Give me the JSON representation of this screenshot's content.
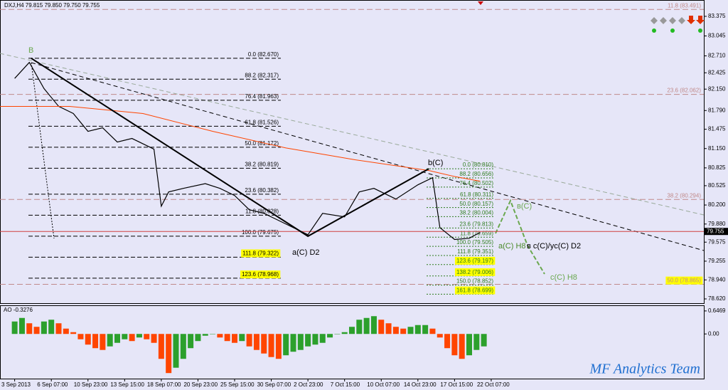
{
  "chart_data": {
    "type": "line",
    "title": "DXJ,H4  79.815 79.850 79.750 79.755",
    "last_price": 79.755,
    "xlim": [
      -4,
      188
    ],
    "xticks": [
      {
        "value": 0,
        "label": "3 Sep 2013"
      },
      {
        "value": 10,
        "label": "6 Sep 07:00"
      },
      {
        "value": 20,
        "label": "10 Sep 23:00"
      },
      {
        "value": 30,
        "label": "13 Sep 15:00"
      },
      {
        "value": 40,
        "label": "18 Sep 07:00"
      },
      {
        "value": 50,
        "label": "20 Sep 23:00"
      },
      {
        "value": 60,
        "label": "25 Sep 15:00"
      },
      {
        "value": 70,
        "label": "30 Sep 07:00"
      },
      {
        "value": 80,
        "label": "2 Oct 23:00"
      },
      {
        "value": 90,
        "label": "7 Oct 15:00"
      },
      {
        "value": 100,
        "label": "10 Oct 07:00"
      },
      {
        "value": 110,
        "label": "14 Oct 23:00"
      },
      {
        "value": 120,
        "label": "17 Oct 15:00"
      },
      {
        "value": 130,
        "label": "22 Oct 07:00"
      }
    ],
    "ylim": [
      78.56,
      83.59
    ],
    "yticks": [
      83.375,
      83.045,
      {
        "value": 82.71,
        "label": "82.710"
      },
      82.425,
      {
        "value": 82.15,
        "label": "82.150"
      },
      {
        "value": 81.79,
        "label": "81.790"
      },
      81.475,
      {
        "value": 81.15,
        "label": "81.150"
      },
      80.825,
      80.525,
      {
        "value": 80.2,
        "label": "80.200"
      },
      {
        "value": 79.88,
        "label": "79.880"
      },
      79.575,
      79.255,
      {
        "value": 78.94,
        "label": "78.940"
      },
      {
        "value": 78.62,
        "label": "78.620"
      }
    ],
    "series": [
      {
        "color": "#000000",
        "x": [
          0,
          4,
          8,
          12,
          16,
          20,
          24,
          28,
          32,
          38,
          40,
          42,
          46,
          52,
          56,
          60,
          64,
          68,
          72,
          78,
          80,
          84,
          90,
          94,
          98,
          104,
          110,
          114,
          116,
          120,
          124,
          127
        ],
        "values": [
          82.33,
          82.6,
          82.16,
          81.86,
          81.74,
          81.44,
          81.5,
          81.26,
          81.32,
          81.14,
          80.18,
          80.42,
          80.48,
          80.56,
          80.48,
          80.36,
          80.12,
          80.06,
          79.94,
          79.76,
          79.7,
          80.06,
          80.0,
          80.42,
          80.48,
          80.3,
          80.54,
          80.66,
          79.82,
          79.62,
          79.64,
          79.74
        ]
      },
      {
        "color": "#ff4500",
        "x": [
          -4,
          15,
          35,
          54,
          74,
          93,
          113,
          120,
          127
        ],
        "values": [
          81.86,
          81.86,
          81.74,
          81.44,
          81.16,
          80.96,
          80.78,
          80.68,
          80.6
        ]
      }
    ],
    "wave": {
      "color": "#000000",
      "x": [
        4.5,
        80,
        113
      ],
      "values": [
        82.67,
        79.675,
        80.81
      ]
    },
    "fib_left": [
      {
        "label": "0.0 (82.670)",
        "value": 82.67,
        "highlight": false
      },
      {
        "label": "88.2 (82.317)",
        "value": 82.317,
        "highlight": false
      },
      {
        "label": "76.4 (81.963)",
        "value": 81.963,
        "highlight": false
      },
      {
        "label": "61.8 (81.526)",
        "value": 81.526,
        "highlight": false
      },
      {
        "label": "50.0 (81.172)",
        "value": 81.172,
        "highlight": false
      },
      {
        "label": "38.2 (80.819)",
        "value": 80.819,
        "highlight": false
      },
      {
        "label": "23.6 (80.382)",
        "value": 80.382,
        "highlight": false
      },
      {
        "label": "11.8 (80.028)",
        "value": 80.028,
        "highlight": false
      },
      {
        "label": "100.0 (79.675)",
        "value": 79.675,
        "highlight": false
      },
      {
        "label": "111.8 (79.322)",
        "value": 79.322,
        "highlight": true
      },
      {
        "label": "123.6 (78.968)",
        "value": 78.968,
        "highlight": true
      }
    ],
    "fib_right": [
      {
        "label": "0.0 (80.810)",
        "value": 80.81,
        "highlight": false
      },
      {
        "label": "88.2 (80.656)",
        "value": 80.656,
        "highlight": false
      },
      {
        "label": "76.4 (80.502)",
        "value": 80.502,
        "highlight": false
      },
      {
        "label": "61.8 (80.311)",
        "value": 80.311,
        "highlight": false
      },
      {
        "label": "50.0 (80.157)",
        "value": 80.157,
        "highlight": false
      },
      {
        "label": "38.2 (80.004)",
        "value": 80.004,
        "highlight": false
      },
      {
        "label": "23.6 (79.813)",
        "value": 79.813,
        "highlight": false
      },
      {
        "label": "11.8 (79.659)",
        "value": 79.659,
        "highlight": false
      },
      {
        "label": "100.0 (79.505)",
        "value": 79.505,
        "highlight": false
      },
      {
        "label": "111.8 (79.351)",
        "value": 79.351,
        "highlight": false
      },
      {
        "label": "123.6 (79.197)",
        "value": 79.197,
        "highlight": true
      },
      {
        "label": "138.2 (79.006)",
        "value": 79.006,
        "highlight": true
      },
      {
        "label": "150.0 (78.852)",
        "value": 78.852,
        "highlight": false
      },
      {
        "label": "161.8 (78.699)",
        "value": 78.699,
        "highlight": true
      }
    ],
    "fib_far": [
      {
        "label": "11.8 (83.491)",
        "value": 83.491,
        "highlight": false
      },
      {
        "label": "23.6 (82.062)",
        "value": 82.062,
        "highlight": false
      },
      {
        "label": "38.2 (80.294)",
        "value": 80.294,
        "highlight": false
      },
      {
        "label": "50.0 (78.865)",
        "value": 78.865,
        "highlight": true
      }
    ],
    "annotations": [
      "B",
      "b(C)",
      "a(C) D2",
      "a(C) H8",
      "в c(C)/yc(C) D2",
      "в(C)",
      "c(C) H8"
    ],
    "watermark": "MF Analytics Team",
    "ao": {
      "title": "AO -0.3276",
      "ylim": [
        -1.216,
        0.745
      ],
      "yticks": [
        0.6469,
        {
          "value": 0,
          "label": "0.00"
        }
      ],
      "up_color": "#2ca02c",
      "down_color": "#ff4500",
      "x": [
        0,
        2,
        4,
        6,
        8,
        10,
        12,
        14,
        16,
        18,
        20,
        22,
        24,
        26,
        28,
        30,
        32,
        34,
        36,
        38,
        40,
        42,
        44,
        46,
        48,
        50,
        52,
        54,
        56,
        58,
        60,
        62,
        64,
        66,
        68,
        70,
        72,
        74,
        76,
        78,
        80,
        82,
        84,
        86,
        88,
        90,
        92,
        94,
        96,
        98,
        100,
        102,
        104,
        106,
        108,
        110,
        112,
        114,
        116,
        118,
        120,
        122,
        124,
        126,
        128
      ],
      "values": [
        0.35,
        0.45,
        0.3,
        0.2,
        0.35,
        0.4,
        0.3,
        0.15,
        0.05,
        -0.15,
        -0.3,
        -0.4,
        -0.45,
        -0.35,
        -0.25,
        -0.15,
        -0.2,
        -0.1,
        -0.15,
        -0.25,
        -0.7,
        -1.1,
        -0.95,
        -0.7,
        -0.4,
        -0.2,
        -0.05,
        0.0,
        -0.1,
        -0.2,
        -0.25,
        -0.2,
        -0.35,
        -0.45,
        -0.55,
        -0.65,
        -0.7,
        -0.6,
        -0.5,
        -0.45,
        -0.35,
        -0.3,
        -0.25,
        -0.1,
        0.0,
        0.05,
        0.2,
        0.4,
        0.45,
        0.5,
        0.4,
        0.3,
        0.2,
        0.15,
        0.2,
        0.25,
        0.25,
        0.15,
        -0.1,
        -0.4,
        -0.6,
        -0.7,
        -0.6,
        -0.45,
        -0.35
      ]
    }
  }
}
